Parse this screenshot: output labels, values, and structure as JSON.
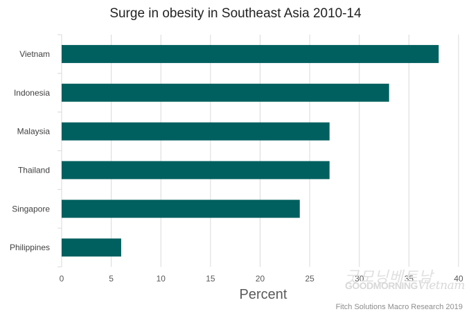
{
  "chart_data": {
    "type": "bar",
    "orientation": "horizontal",
    "title": "Surge in obesity in Southeast Asia 2010-14",
    "xlabel": "Percent",
    "ylabel": "",
    "categories": [
      "Vietnam",
      "Indonesia",
      "Malaysia",
      "Thailand",
      "Singapore",
      "Philippines"
    ],
    "values": [
      38,
      33,
      27,
      27,
      24,
      6
    ],
    "xlim": [
      0,
      40
    ],
    "xticks": [
      0,
      5,
      10,
      15,
      20,
      25,
      30,
      35,
      40
    ],
    "grid": true,
    "legend": "none",
    "bar_color": "#00605f",
    "grid_color": "#d9d9d9"
  },
  "source": "Fitch Solutions Macro Research 2019",
  "watermark": {
    "korean": "굿모닝베트남",
    "good_morning": "GOODMORNING",
    "vietnam": "Vietnam"
  }
}
